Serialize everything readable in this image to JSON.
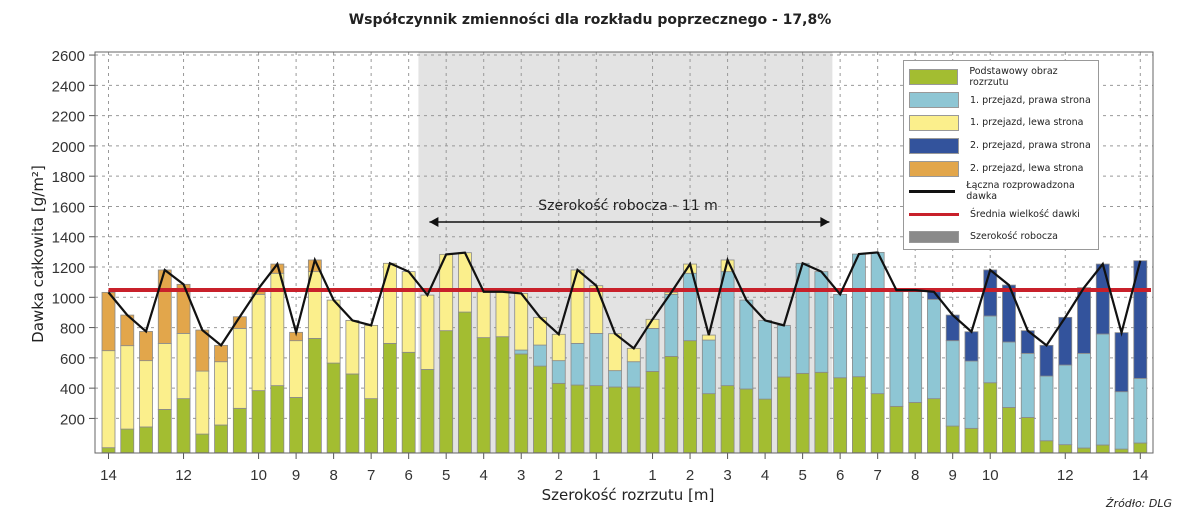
{
  "chart_data": {
    "type": "bar",
    "stacked": true,
    "title": "Współczynnik zmienności dla rozkładu poprzecznego - 17,8%",
    "xlabel": "Szerokość rozrzutu [m]",
    "ylabel": "Dawka całkowita [g/m²]",
    "ylim": [
      0,
      2600
    ],
    "y_ticks": [
      "200",
      "400",
      "600",
      "800",
      "1000",
      "1200",
      "1400",
      "1600",
      "1800",
      "2000",
      "2200",
      "2400",
      "2600"
    ],
    "x_ticks": [
      {
        "label": "14",
        "bar": 0
      },
      {
        "label": "12",
        "bar": 4
      },
      {
        "label": "10",
        "bar": 8
      },
      {
        "label": "9",
        "bar": 10
      },
      {
        "label": "8",
        "bar": 12
      },
      {
        "label": "7",
        "bar": 14
      },
      {
        "label": "6",
        "bar": 16
      },
      {
        "label": "5",
        "bar": 18
      },
      {
        "label": "4",
        "bar": 20
      },
      {
        "label": "3",
        "bar": 22
      },
      {
        "label": "2",
        "bar": 24
      },
      {
        "label": "1",
        "bar": 26
      },
      {
        "label": "1",
        "bar": 29
      },
      {
        "label": "2",
        "bar": 31
      },
      {
        "label": "3",
        "bar": 33
      },
      {
        "label": "4",
        "bar": 35
      },
      {
        "label": "5",
        "bar": 37
      },
      {
        "label": "6",
        "bar": 39
      },
      {
        "label": "7",
        "bar": 41
      },
      {
        "label": "8",
        "bar": 43
      },
      {
        "label": "9",
        "bar": 45
      },
      {
        "label": "10",
        "bar": 47
      },
      {
        "label": "12",
        "bar": 51
      },
      {
        "label": "14",
        "bar": 55
      }
    ],
    "grid": true,
    "legend_position": "top-right",
    "series": [
      {
        "name": "Podstawowy obraz rozrzutu",
        "color": "#a3bd31",
        "values": [
          33,
          156,
          170,
          286,
          357,
          123,
          183,
          293,
          410,
          443,
          365,
          755,
          592,
          520,
          357,
          722,
          663,
          550,
          806,
          929,
          760,
          766,
          652,
          572,
          458,
          447,
          443,
          434,
          434,
          537,
          636,
          740,
          390,
          443,
          421,
          354,
          500,
          524,
          531,
          495,
          502,
          390,
          306,
          332,
          357,
          176,
          161,
          462,
          299,
          233,
          79,
          53,
          31,
          51,
          24,
          64
        ]
      },
      {
        "name": "1. przejazd, prawa strona",
        "color": "#8ec6d4",
        "values": [
          0,
          0,
          0,
          0,
          0,
          0,
          0,
          0,
          0,
          0,
          0,
          0,
          0,
          0,
          0,
          0,
          0,
          0,
          0,
          0,
          0,
          0,
          26,
          139,
          150,
          275,
          345,
          108,
          167,
          284,
          410,
          445,
          354,
          753,
          587,
          520,
          341,
          727,
          665,
          551,
          810,
          933,
          768,
          742,
          656,
          564,
          444,
          441,
          432,
          423,
          427,
          526,
          625,
          733,
          379,
          427
        ]
      },
      {
        "name": "1. przejazd, lewa strona",
        "color": "#fbef8c",
        "values": [
          641,
          551,
          438,
          436,
          431,
          416,
          418,
          528,
          636,
          742,
          375,
          441,
          416,
          354,
          484,
          529,
          533,
          491,
          504,
          392,
          303,
          297,
          374,
          183,
          174,
          485,
          315,
          244,
          88,
          60,
          13,
          61,
          33,
          77,
          0,
          0,
          0,
          0,
          0,
          0,
          0,
          0,
          0,
          0,
          0,
          0,
          0,
          0,
          0,
          0,
          0,
          0,
          0,
          0,
          0,
          0
        ]
      },
      {
        "name": "2. przejazd, prawa strona",
        "color": "#33539c",
        "values": [
          0,
          0,
          0,
          0,
          0,
          0,
          0,
          0,
          0,
          0,
          0,
          0,
          0,
          0,
          0,
          0,
          0,
          0,
          0,
          0,
          0,
          0,
          0,
          0,
          0,
          0,
          0,
          0,
          0,
          0,
          0,
          0,
          0,
          0,
          0,
          0,
          0,
          0,
          0,
          0,
          0,
          0,
          0,
          0,
          50,
          169,
          194,
          304,
          376,
          150,
          203,
          315,
          434,
          462,
          390,
          777
        ]
      },
      {
        "name": "2. przejazd, lewa strona",
        "color": "#e2a64b",
        "values": [
          385,
          202,
          193,
          485,
          324,
          271,
          108,
          77,
          39,
          61,
          55,
          77,
          0,
          0,
          0,
          0,
          0,
          0,
          0,
          0,
          0,
          0,
          0,
          0,
          0,
          0,
          0,
          0,
          0,
          0,
          0,
          0,
          0,
          0,
          0,
          0,
          0,
          0,
          0,
          0,
          0,
          0,
          0,
          0,
          0,
          0,
          0,
          0,
          0,
          0,
          0,
          0,
          0,
          0,
          0,
          0
        ]
      }
    ],
    "total_line": {
      "name": "Łączna rozprowadzona dawka",
      "color": "#111111"
    },
    "mean_line": {
      "name": "Średnia wielkość dawki",
      "value": 1075,
      "color": "#c8202a"
    },
    "working_width": {
      "name": "Szerokość robocza",
      "label": "Szerokość robocza - 11 m",
      "from_bar": 17,
      "to_bar": 38,
      "color": "#8a8a8a"
    }
  },
  "source": "Źródło: DLG"
}
